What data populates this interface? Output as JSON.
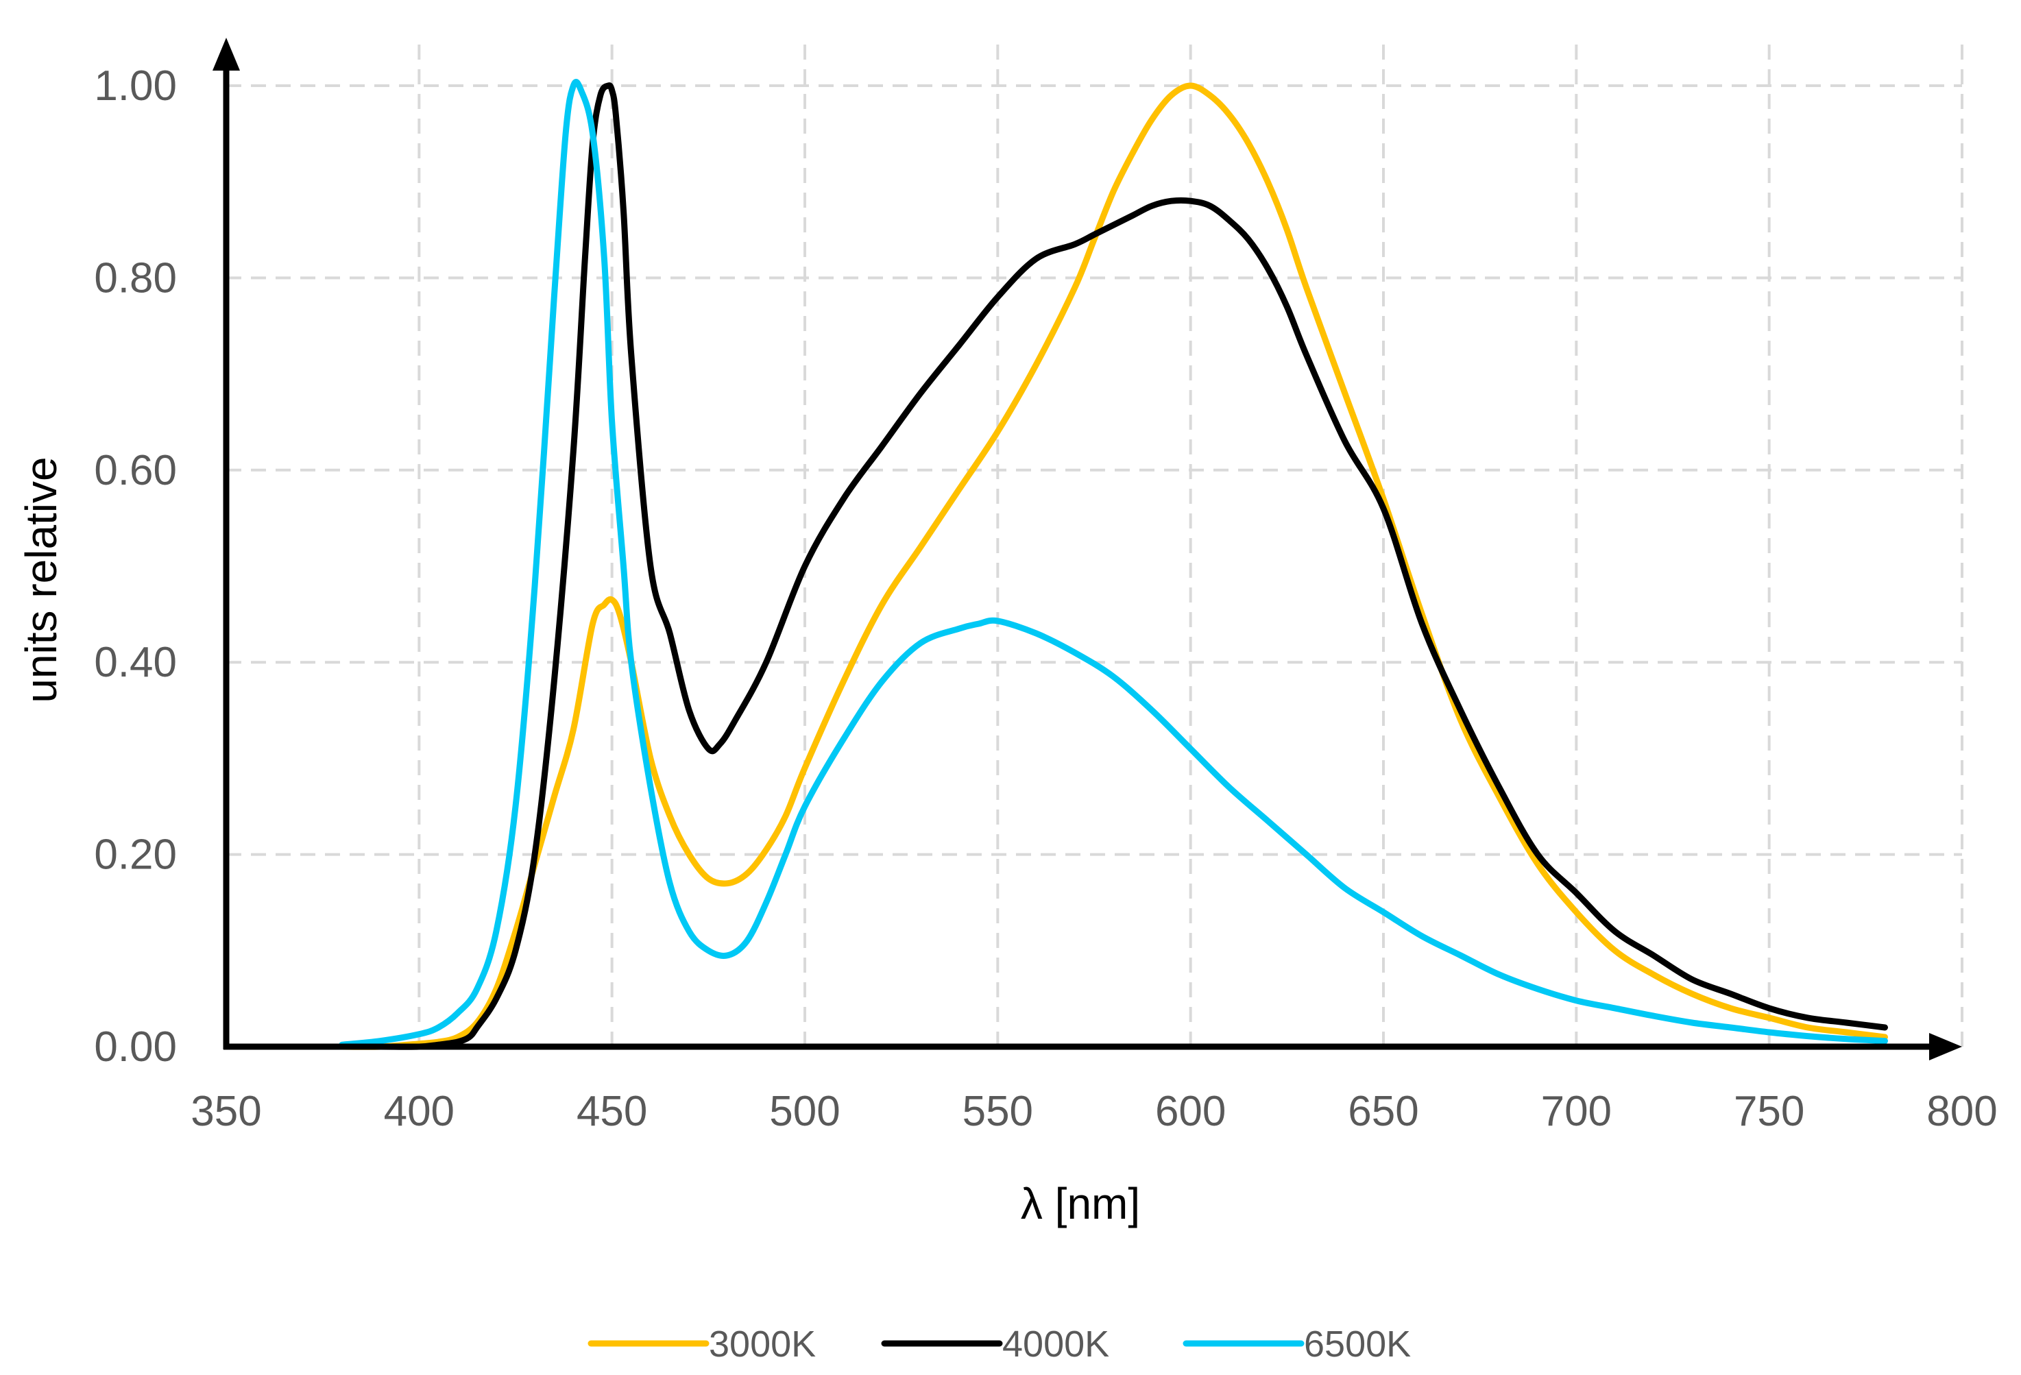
{
  "chart_data": {
    "type": "line",
    "title": "",
    "xlabel": "λ [nm]",
    "ylabel": "units relative",
    "xlim": [
      350,
      800
    ],
    "ylim": [
      0,
      1.0
    ],
    "x_ticks": [
      350,
      400,
      450,
      500,
      550,
      600,
      650,
      700,
      750,
      800
    ],
    "x_tick_labels": [
      "350",
      "400",
      "450",
      "500",
      "550",
      "600",
      "650",
      "700",
      "750",
      "800"
    ],
    "y_ticks": [
      0,
      0.2,
      0.4,
      0.6,
      0.8,
      1.0
    ],
    "y_tick_labels": [
      "0.00",
      "0.20",
      "0.40",
      "0.60",
      "0.80",
      "1.00"
    ],
    "grid": true,
    "legend_position": "bottom-center",
    "series": [
      {
        "name": "3000K",
        "color": "#FFC000",
        "x": [
          380,
          390,
          400,
          405,
          410,
          415,
          420,
          425,
          430,
          435,
          440,
          445,
          448,
          450,
          452,
          455,
          460,
          465,
          470,
          475,
          480,
          485,
          490,
          495,
          500,
          510,
          520,
          530,
          540,
          550,
          560,
          570,
          575,
          580,
          585,
          590,
          595,
          600,
          605,
          610,
          615,
          620,
          625,
          630,
          640,
          650,
          660,
          670,
          680,
          690,
          700,
          710,
          720,
          730,
          740,
          750,
          760,
          770,
          780
        ],
        "y": [
          0.0,
          0.0,
          0.003,
          0.005,
          0.01,
          0.025,
          0.06,
          0.12,
          0.19,
          0.26,
          0.33,
          0.44,
          0.46,
          0.465,
          0.45,
          0.4,
          0.3,
          0.24,
          0.2,
          0.175,
          0.17,
          0.18,
          0.205,
          0.24,
          0.29,
          0.38,
          0.46,
          0.52,
          0.58,
          0.64,
          0.71,
          0.79,
          0.84,
          0.89,
          0.93,
          0.965,
          0.99,
          1.0,
          0.99,
          0.97,
          0.94,
          0.9,
          0.85,
          0.79,
          0.68,
          0.57,
          0.45,
          0.34,
          0.26,
          0.19,
          0.14,
          0.1,
          0.075,
          0.055,
          0.04,
          0.03,
          0.02,
          0.015,
          0.01
        ]
      },
      {
        "name": "4000K",
        "color": "#000000",
        "x": [
          380,
          390,
          400,
          405,
          410,
          413,
          415,
          420,
          425,
          430,
          435,
          440,
          443,
          445,
          447,
          449,
          450,
          451,
          453,
          455,
          460,
          465,
          470,
          475,
          478,
          482,
          490,
          500,
          510,
          520,
          530,
          540,
          550,
          560,
          570,
          575,
          580,
          585,
          590,
          595,
          600,
          605,
          610,
          615,
          620,
          625,
          630,
          640,
          650,
          660,
          670,
          680,
          690,
          700,
          710,
          720,
          730,
          740,
          750,
          760,
          770,
          780
        ],
        "y": [
          0.0,
          0.0,
          0.0,
          0.002,
          0.005,
          0.01,
          0.02,
          0.05,
          0.1,
          0.2,
          0.38,
          0.62,
          0.82,
          0.94,
          0.99,
          1.0,
          0.995,
          0.97,
          0.87,
          0.72,
          0.5,
          0.43,
          0.35,
          0.31,
          0.315,
          0.34,
          0.4,
          0.5,
          0.57,
          0.625,
          0.68,
          0.73,
          0.78,
          0.82,
          0.835,
          0.845,
          0.855,
          0.865,
          0.875,
          0.88,
          0.88,
          0.875,
          0.86,
          0.84,
          0.81,
          0.77,
          0.72,
          0.63,
          0.56,
          0.44,
          0.35,
          0.27,
          0.2,
          0.16,
          0.12,
          0.095,
          0.07,
          0.055,
          0.04,
          0.03,
          0.025,
          0.02
        ]
      },
      {
        "name": "6500K",
        "color": "#00C8F5",
        "x": [
          380,
          390,
          400,
          405,
          410,
          415,
          420,
          425,
          430,
          435,
          438,
          440,
          442,
          445,
          448,
          450,
          453,
          455,
          460,
          465,
          470,
          475,
          480,
          485,
          490,
          495,
          500,
          510,
          520,
          530,
          540,
          545,
          550,
          560,
          570,
          580,
          590,
          600,
          610,
          620,
          630,
          640,
          650,
          660,
          670,
          680,
          690,
          700,
          710,
          720,
          730,
          740,
          750,
          760,
          770,
          780
        ],
        "y": [
          0.002,
          0.006,
          0.013,
          0.02,
          0.035,
          0.06,
          0.12,
          0.25,
          0.48,
          0.78,
          0.95,
          1.0,
          0.995,
          0.95,
          0.82,
          0.65,
          0.5,
          0.4,
          0.27,
          0.17,
          0.12,
          0.1,
          0.095,
          0.11,
          0.15,
          0.2,
          0.25,
          0.32,
          0.38,
          0.42,
          0.435,
          0.44,
          0.443,
          0.43,
          0.41,
          0.385,
          0.35,
          0.31,
          0.27,
          0.235,
          0.2,
          0.165,
          0.14,
          0.115,
          0.095,
          0.075,
          0.06,
          0.048,
          0.04,
          0.032,
          0.025,
          0.02,
          0.015,
          0.011,
          0.008,
          0.006
        ]
      }
    ]
  }
}
